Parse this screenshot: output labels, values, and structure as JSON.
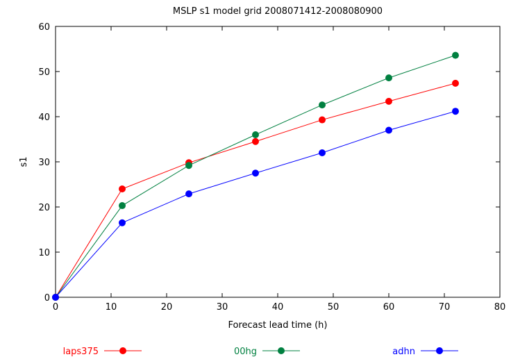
{
  "chart_data": {
    "type": "line",
    "title": "MSLP s1 model grid 2008071412-2008080900",
    "xlabel": "Forecast lead time (h)",
    "ylabel": "s1",
    "xlim": [
      0,
      80
    ],
    "ylim": [
      0,
      60
    ],
    "xticks": [
      "0",
      "10",
      "20",
      "30",
      "40",
      "50",
      "60",
      "70",
      "80"
    ],
    "yticks": [
      "0",
      "10",
      "20",
      "30",
      "40",
      "50",
      "60"
    ],
    "x": [
      0,
      12,
      24,
      36,
      48,
      60,
      72
    ],
    "grid": false,
    "legend_position": "bottom",
    "series": [
      {
        "name": "laps375",
        "color": "#ff0000",
        "values": [
          0,
          24.0,
          29.8,
          34.5,
          39.3,
          43.4,
          47.4
        ]
      },
      {
        "name": "00hg",
        "color": "#008040",
        "values": [
          0,
          20.3,
          29.2,
          36.0,
          42.6,
          48.6,
          53.6
        ]
      },
      {
        "name": "adhn",
        "color": "#0000ff",
        "values": [
          0,
          16.5,
          22.9,
          27.5,
          32.0,
          37.0,
          41.2
        ]
      }
    ]
  }
}
